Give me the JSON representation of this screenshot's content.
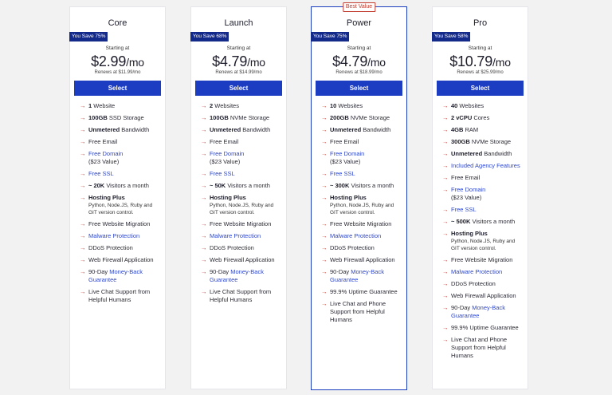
{
  "colors": {
    "accent": "#1c3cc2",
    "badge": "#142a8a",
    "arrow": "#c0392b",
    "link": "#2e47c9"
  },
  "plans": [
    {
      "name": "Core",
      "save": "You Save 75%",
      "starting": "Starting at",
      "price": "$2.99",
      "per": "/mo",
      "renews": "Renews at $11.99/mo",
      "select": "Select",
      "features": [
        {
          "bold": "1",
          "text": " Website"
        },
        {
          "bold": "100GB",
          "text": " SSD Storage"
        },
        {
          "bold": "Unmetered",
          "text": " Bandwidth"
        },
        {
          "text": "Free Email"
        },
        {
          "link": "Free Domain",
          "sub": "($23 Value)"
        },
        {
          "link": "Free SSL"
        },
        {
          "bold": "~ 20K",
          "text": " Visitors a month"
        },
        {
          "bold": "Hosting Plus",
          "sub": "Python, Node.JS, Ruby and GIT version control."
        },
        {
          "text": "Free Website Migration"
        },
        {
          "link": "Malware Protection"
        },
        {
          "text": "DDoS Protection"
        },
        {
          "text": "Web Firewall Application"
        },
        {
          "text": "90-Day ",
          "link": "Money-Back Guarantee"
        },
        {
          "text": "Live Chat Support from Helpful Humans"
        }
      ]
    },
    {
      "name": "Launch",
      "save": "You Save 68%",
      "starting": "Starting at",
      "price": "$4.79",
      "per": "/mo",
      "renews": "Renews at $14.99/mo",
      "select": "Select",
      "features": [
        {
          "bold": "2",
          "text": " Websites"
        },
        {
          "bold": "100GB",
          "text": " NVMe Storage"
        },
        {
          "bold": "Unmetered",
          "text": " Bandwidth"
        },
        {
          "text": "Free Email"
        },
        {
          "link": "Free Domain",
          "sub": "($23 Value)"
        },
        {
          "link": "Free SSL"
        },
        {
          "bold": "~ 50K",
          "text": " Visitors a month"
        },
        {
          "bold": "Hosting Plus",
          "sub": "Python, Node.JS, Ruby and GIT version control."
        },
        {
          "text": "Free Website Migration"
        },
        {
          "link": "Malware Protection"
        },
        {
          "text": "DDoS Protection"
        },
        {
          "text": "Web Firewall Application"
        },
        {
          "text": "90-Day ",
          "link": "Money-Back Guarantee"
        },
        {
          "text": "Live Chat Support from Helpful Humans"
        }
      ]
    },
    {
      "name": "Power",
      "badge": "Best Value",
      "save": "You Save 75%",
      "starting": "Starting at",
      "price": "$4.79",
      "per": "/mo",
      "renews": "Renews at $18.99/mo",
      "select": "Select",
      "features": [
        {
          "bold": "10",
          "text": " Websites"
        },
        {
          "bold": "200GB",
          "text": " NVMe Storage"
        },
        {
          "bold": "Unmetered",
          "text": " Bandwidth"
        },
        {
          "text": "Free Email"
        },
        {
          "link": "Free Domain",
          "sub": "($23 Value)"
        },
        {
          "link": "Free SSL"
        },
        {
          "bold": "~ 300K",
          "text": " Visitors a month"
        },
        {
          "bold": "Hosting Plus",
          "sub": "Python, Node.JS, Ruby and GIT version control."
        },
        {
          "text": "Free Website Migration"
        },
        {
          "link": "Malware Protection"
        },
        {
          "text": "DDoS Protection"
        },
        {
          "text": "Web Firewall Application"
        },
        {
          "text": "90-Day ",
          "link": "Money-Back Guarantee"
        },
        {
          "text": "99.9% Uptime Guarantee"
        },
        {
          "text": "Live Chat and Phone Support from Helpful Humans"
        }
      ]
    },
    {
      "name": "Pro",
      "save": "You Save 58%",
      "starting": "Starting at",
      "price": "$10.79",
      "per": "/mo",
      "renews": "Renews at $25.99/mo",
      "select": "Select",
      "features": [
        {
          "bold": "40",
          "text": " Websites"
        },
        {
          "bold": "2 vCPU",
          "text": " Cores"
        },
        {
          "bold": "4GB",
          "text": " RAM"
        },
        {
          "bold": "300GB",
          "text": " NVMe Storage"
        },
        {
          "bold": "Unmetered",
          "text": " Bandwidth"
        },
        {
          "link": "Included Agency Features"
        },
        {
          "text": "Free Email"
        },
        {
          "link": "Free Domain",
          "sub": "($23 Value)"
        },
        {
          "link": "Free SSL"
        },
        {
          "bold": "~ 500K",
          "text": " Visitors a month"
        },
        {
          "bold": "Hosting Plus",
          "sub": "Python, Node.JS, Ruby and GIT version control."
        },
        {
          "text": "Free Website Migration"
        },
        {
          "link": "Malware Protection"
        },
        {
          "text": "DDoS Protection"
        },
        {
          "text": "Web Firewall Application"
        },
        {
          "text": "90-Day ",
          "link": "Money-Back Guarantee"
        },
        {
          "text": "99.9% Uptime Guarantee"
        },
        {
          "text": "Live Chat and Phone Support from Helpful Humans"
        }
      ]
    }
  ]
}
